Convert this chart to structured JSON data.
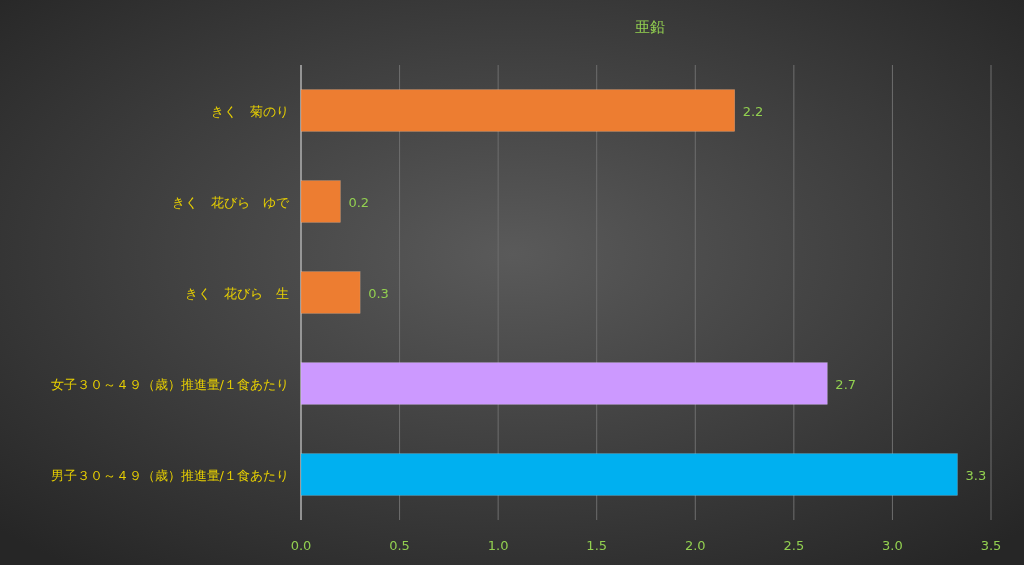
{
  "chart_data": {
    "type": "bar",
    "orientation": "horizontal",
    "title": "亜鉛",
    "categories": [
      "きく　菊のり",
      "きく　花びら　ゆで",
      "きく　花びら　生",
      "女子３０～４９（歳）推進量/１食あたり",
      "男子３０～４９（歳）推進量/１食あたり"
    ],
    "values": [
      2.2,
      0.2,
      0.3,
      2.67,
      3.33
    ],
    "value_labels": [
      "2.2",
      "0.2",
      "0.3",
      "2.7",
      "3.3"
    ],
    "colors": [
      "#ed7d31",
      "#ed7d31",
      "#ed7d31",
      "#cc99ff",
      "#00b0f0"
    ],
    "xlim": [
      0,
      3.5
    ],
    "xticks": [
      {
        "value": 0,
        "label": "0.0"
      },
      {
        "value": 0.5,
        "label": "0.5"
      },
      {
        "value": 1,
        "label": "1.0"
      },
      {
        "value": 1.5,
        "label": "1.5"
      },
      {
        "value": 2,
        "label": "2.0"
      },
      {
        "value": 2.5,
        "label": "2.5"
      },
      {
        "value": 3,
        "label": "3.0"
      },
      {
        "value": 3.5,
        "label": "3.5"
      }
    ],
    "grid": "x"
  }
}
